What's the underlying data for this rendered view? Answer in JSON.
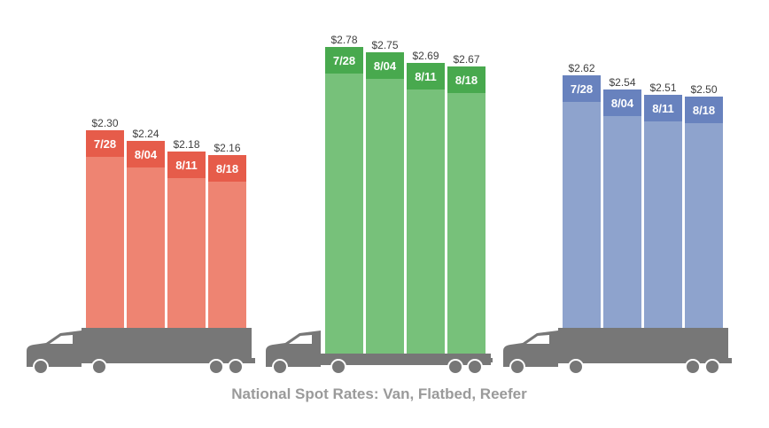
{
  "chart_data": {
    "type": "bar",
    "title": "National Spot Rates: Van, Flatbed, Reefer",
    "categories": [
      "7/28",
      "8/04",
      "8/11",
      "8/18"
    ],
    "ylim": [
      0,
      3.0
    ],
    "grid": false,
    "series": [
      {
        "key": "van",
        "values": [
          2.3,
          2.24,
          2.18,
          2.16
        ],
        "labels": [
          "$2.30",
          "$2.24",
          "$2.18",
          "$2.16"
        ],
        "color_body": "#ee8472",
        "color_cap": "#e65c4a",
        "trailer_style": "dry-van"
      },
      {
        "key": "flatbed",
        "values": [
          2.78,
          2.75,
          2.69,
          2.67
        ],
        "labels": [
          "$2.78",
          "$2.75",
          "$2.69",
          "$2.67"
        ],
        "color_body": "#77c17a",
        "color_cap": "#48a94e",
        "trailer_style": "flatbed"
      },
      {
        "key": "reefer",
        "values": [
          2.62,
          2.54,
          2.51,
          2.5
        ],
        "labels": [
          "$2.62",
          "$2.54",
          "$2.51",
          "$2.50"
        ],
        "color_body": "#8ea3cd",
        "color_cap": "#6882be",
        "trailer_style": "reefer"
      }
    ],
    "truck_color": "#777777"
  }
}
